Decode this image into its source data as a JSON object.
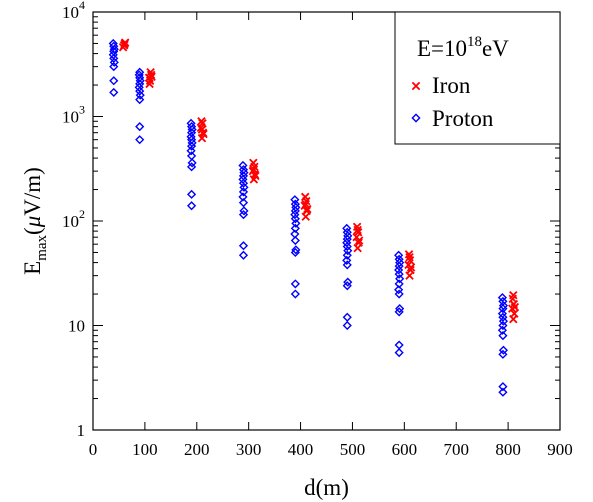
{
  "chart_data": {
    "type": "scatter",
    "xlabel": "d(m)",
    "ylabel": {
      "main": "E",
      "subscript": "max",
      "unit_prefix": "(",
      "unit_mu": "μ",
      "unit_rest": "V/m)"
    },
    "xlim": [
      0,
      900
    ],
    "ylim": [
      1,
      10000
    ],
    "yscale": "log",
    "grid": false,
    "legend_position": "top-right",
    "x_ticks": [
      {
        "value": 0,
        "label": "0"
      },
      {
        "value": 100,
        "label": "100"
      },
      {
        "value": 200,
        "label": "200"
      },
      {
        "value": 300,
        "label": "300"
      },
      {
        "value": 400,
        "label": "400"
      },
      {
        "value": 500,
        "label": "500"
      },
      {
        "value": 600,
        "label": "600"
      },
      {
        "value": 700,
        "label": "700"
      },
      {
        "value": 800,
        "label": "800"
      },
      {
        "value": 900,
        "label": "900"
      }
    ],
    "y_ticks": [
      {
        "value": 1,
        "label": "1"
      },
      {
        "value": 10,
        "label": "10"
      },
      {
        "value": 100,
        "base": "10",
        "exp": "2"
      },
      {
        "value": 1000,
        "base": "10",
        "exp": "3"
      },
      {
        "value": 10000,
        "base": "10",
        "exp": "4"
      }
    ],
    "legend": {
      "title_prefix": "E=10",
      "title_exp": "18",
      "title_suffix": "eV"
    },
    "series": [
      {
        "name": "Iron",
        "marker": "x",
        "color": "#ff0000",
        "points": [
          [
            60,
            4800
          ],
          [
            62,
            5100
          ],
          [
            58,
            4600
          ],
          [
            61,
            4950
          ],
          [
            110,
            2200
          ],
          [
            112,
            2500
          ],
          [
            108,
            2350
          ],
          [
            111,
            2650
          ],
          [
            109,
            2050
          ],
          [
            113,
            2400
          ],
          [
            210,
            620
          ],
          [
            212,
            700
          ],
          [
            208,
            780
          ],
          [
            211,
            860
          ],
          [
            209,
            900
          ],
          [
            213,
            680
          ],
          [
            210,
            750
          ],
          [
            310,
            250
          ],
          [
            312,
            280
          ],
          [
            308,
            300
          ],
          [
            311,
            330
          ],
          [
            309,
            360
          ],
          [
            313,
            270
          ],
          [
            310,
            310
          ],
          [
            410,
            110
          ],
          [
            412,
            125
          ],
          [
            408,
            140
          ],
          [
            411,
            155
          ],
          [
            409,
            170
          ],
          [
            413,
            130
          ],
          [
            410,
            145
          ],
          [
            510,
            55
          ],
          [
            512,
            62
          ],
          [
            508,
            70
          ],
          [
            511,
            78
          ],
          [
            509,
            88
          ],
          [
            513,
            65
          ],
          [
            510,
            82
          ],
          [
            610,
            30
          ],
          [
            612,
            34
          ],
          [
            608,
            38
          ],
          [
            611,
            42
          ],
          [
            609,
            48
          ],
          [
            613,
            36
          ],
          [
            610,
            45
          ],
          [
            810,
            11.5
          ],
          [
            812,
            13
          ],
          [
            808,
            14.5
          ],
          [
            811,
            16
          ],
          [
            809,
            18
          ],
          [
            813,
            15
          ],
          [
            810,
            19.5
          ]
        ]
      },
      {
        "name": "Proton",
        "marker": "diamond",
        "color": "#0000ff",
        "points": [
          [
            40,
            1700
          ],
          [
            40,
            2200
          ],
          [
            40,
            3000
          ],
          [
            41,
            3300
          ],
          [
            40,
            3600
          ],
          [
            39,
            3900
          ],
          [
            40,
            4200
          ],
          [
            41,
            4400
          ],
          [
            40,
            4700
          ],
          [
            39,
            5000
          ],
          [
            90,
            600
          ],
          [
            90,
            800
          ],
          [
            90,
            1450
          ],
          [
            91,
            1600
          ],
          [
            90,
            1750
          ],
          [
            89,
            1900
          ],
          [
            90,
            2050
          ],
          [
            91,
            2200
          ],
          [
            90,
            2350
          ],
          [
            89,
            2500
          ],
          [
            90,
            2650
          ],
          [
            190,
            140
          ],
          [
            190,
            180
          ],
          [
            190,
            330
          ],
          [
            191,
            360
          ],
          [
            190,
            420
          ],
          [
            189,
            470
          ],
          [
            190,
            520
          ],
          [
            191,
            560
          ],
          [
            190,
            600
          ],
          [
            189,
            640
          ],
          [
            190,
            700
          ],
          [
            191,
            750
          ],
          [
            190,
            800
          ],
          [
            189,
            860
          ],
          [
            290,
            47
          ],
          [
            290,
            58
          ],
          [
            290,
            115
          ],
          [
            291,
            125
          ],
          [
            290,
            150
          ],
          [
            289,
            170
          ],
          [
            290,
            190
          ],
          [
            291,
            210
          ],
          [
            290,
            230
          ],
          [
            289,
            250
          ],
          [
            290,
            270
          ],
          [
            291,
            290
          ],
          [
            290,
            310
          ],
          [
            289,
            340
          ],
          [
            390,
            20
          ],
          [
            390,
            25
          ],
          [
            390,
            50
          ],
          [
            391,
            53
          ],
          [
            390,
            65
          ],
          [
            389,
            75
          ],
          [
            390,
            85
          ],
          [
            391,
            95
          ],
          [
            390,
            105
          ],
          [
            389,
            115
          ],
          [
            390,
            125
          ],
          [
            391,
            135
          ],
          [
            390,
            145
          ],
          [
            389,
            160
          ],
          [
            490,
            10
          ],
          [
            490,
            12
          ],
          [
            490,
            24
          ],
          [
            491,
            26
          ],
          [
            490,
            38
          ],
          [
            489,
            42
          ],
          [
            490,
            47
          ],
          [
            491,
            52
          ],
          [
            490,
            57
          ],
          [
            489,
            62
          ],
          [
            490,
            67
          ],
          [
            491,
            72
          ],
          [
            490,
            78
          ],
          [
            489,
            85
          ],
          [
            590,
            5.5
          ],
          [
            590,
            6.5
          ],
          [
            590,
            13.5
          ],
          [
            591,
            14.5
          ],
          [
            590,
            20
          ],
          [
            589,
            22
          ],
          [
            590,
            25
          ],
          [
            591,
            28
          ],
          [
            590,
            31
          ],
          [
            589,
            34
          ],
          [
            590,
            37
          ],
          [
            591,
            40
          ],
          [
            590,
            43
          ],
          [
            589,
            47
          ],
          [
            790,
            2.3
          ],
          [
            790,
            2.6
          ],
          [
            790,
            5.3
          ],
          [
            791,
            5.8
          ],
          [
            790,
            8
          ],
          [
            789,
            9
          ],
          [
            790,
            10
          ],
          [
            791,
            11
          ],
          [
            790,
            12
          ],
          [
            789,
            13
          ],
          [
            790,
            14.5
          ],
          [
            791,
            15.5
          ],
          [
            790,
            17
          ],
          [
            789,
            18.5
          ]
        ]
      }
    ]
  }
}
